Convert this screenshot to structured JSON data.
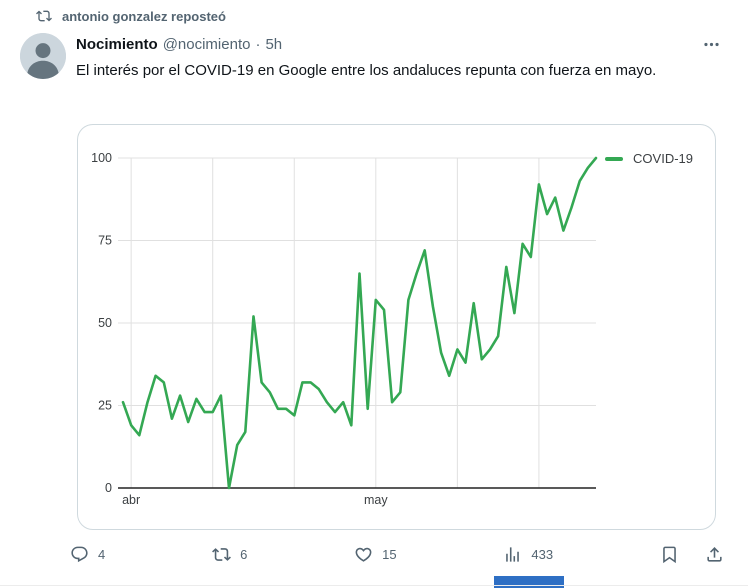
{
  "banner": {
    "repost_label": "antonio gonzalez reposteó"
  },
  "tweet": {
    "author_name": "Nocimiento",
    "handle": "@nocimiento",
    "dot": "·",
    "time": "5h",
    "body": "El interés por el COVID-19 en Google entre los andaluces repunta con fuerza en mayo."
  },
  "chart_data": {
    "type": "line",
    "legend": "COVID-19",
    "line_color": "#34a853",
    "ylim": [
      0,
      100
    ],
    "y_ticks": [
      0,
      25,
      50,
      75,
      100
    ],
    "x_gridline_indices": [
      1,
      11,
      21,
      31,
      41,
      51
    ],
    "x_labels": [
      {
        "index": 1,
        "label": "abr"
      },
      {
        "index": 31,
        "label": "may"
      }
    ],
    "values": [
      26,
      19,
      16,
      26,
      34,
      32,
      21,
      28,
      20,
      27,
      23,
      23,
      28,
      0,
      13,
      17,
      52,
      32,
      29,
      24,
      24,
      22,
      32,
      32,
      30,
      26,
      23,
      26,
      19,
      65,
      24,
      57,
      54,
      26,
      29,
      57,
      65,
      72,
      55,
      41,
      34,
      42,
      38,
      56,
      39,
      42,
      46,
      67,
      53,
      74,
      70,
      92,
      83,
      88,
      78,
      85,
      93,
      97,
      100
    ],
    "grid_on": true,
    "legend_position": "top-right"
  },
  "actions": {
    "reply_count": "4",
    "repost_count": "6",
    "like_count": "15",
    "view_count": "433"
  },
  "colors": {
    "accent_green": "#34a853",
    "muted_gray": "#536471",
    "text_black": "#0f1419",
    "card_border": "#cfd9de",
    "gridline": "#e0e0e0",
    "axis_line": "#222222",
    "blue_bar": "#2e6fc4"
  }
}
